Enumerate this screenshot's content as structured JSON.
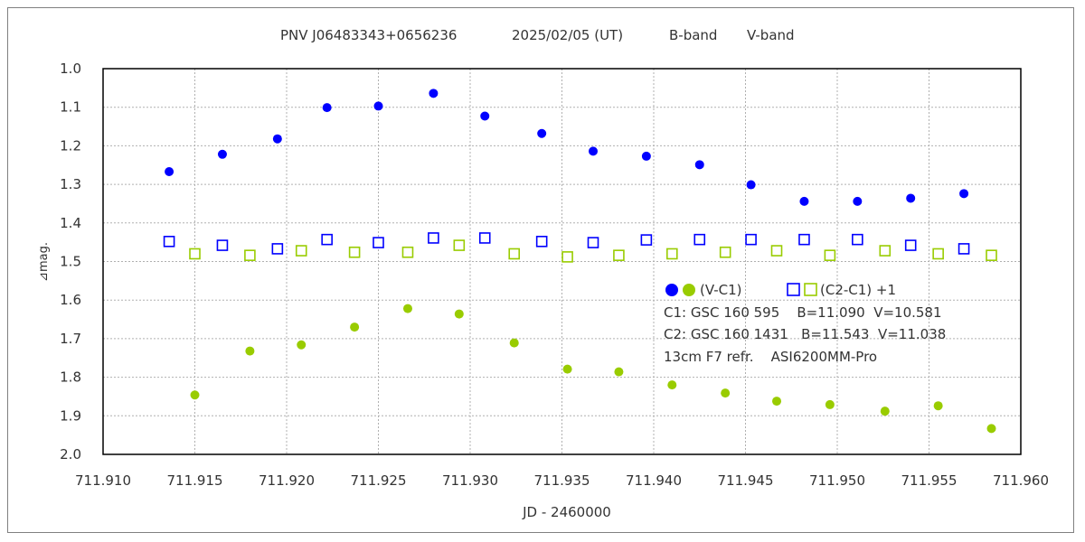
{
  "chart_data": {
    "type": "scatter",
    "title": "PNV J06483343+0656236",
    "date_text": "2025/02/05 (UT)",
    "band_labels": [
      {
        "text": "B-band",
        "color": "#0000FF"
      },
      {
        "text": "V-band",
        "color": "#99CC00"
      }
    ],
    "xlabel": "JD - 2460000",
    "ylabel": "⊿mag.",
    "xlim": [
      711.91,
      711.96
    ],
    "ylim": [
      1.0,
      2.0
    ],
    "y_inverted": true,
    "grid": true,
    "x_ticks": [
      "711.910",
      "711.915",
      "711.920",
      "711.925",
      "711.930",
      "711.935",
      "711.940",
      "711.945",
      "711.950",
      "711.955",
      "711.960"
    ],
    "y_ticks": [
      "1.0",
      "1.1",
      "1.2",
      "1.3",
      "1.4",
      "1.5",
      "1.6",
      "1.7",
      "1.8",
      "1.9",
      "2.0"
    ],
    "series": [
      {
        "name": "B (V-C1)",
        "marker": "filled-circle",
        "color": "#0000FF",
        "points": [
          [
            711.9136,
            1.267
          ],
          [
            711.9165,
            1.222
          ],
          [
            711.9195,
            1.182
          ],
          [
            711.9222,
            1.101
          ],
          [
            711.925,
            1.097
          ],
          [
            711.928,
            1.064
          ],
          [
            711.9308,
            1.123
          ],
          [
            711.9339,
            1.168
          ],
          [
            711.9367,
            1.214
          ],
          [
            711.9396,
            1.227
          ],
          [
            711.9425,
            1.249
          ],
          [
            711.9453,
            1.301
          ],
          [
            711.9482,
            1.344
          ],
          [
            711.9511,
            1.344
          ],
          [
            711.954,
            1.336
          ],
          [
            711.9569,
            1.324
          ]
        ]
      },
      {
        "name": "V (V-C1)",
        "marker": "filled-circle",
        "color": "#99CC00",
        "points": [
          [
            711.915,
            1.846
          ],
          [
            711.918,
            1.732
          ],
          [
            711.9208,
            1.716
          ],
          [
            711.9237,
            1.67
          ],
          [
            711.9266,
            1.622
          ],
          [
            711.9294,
            1.636
          ],
          [
            711.9324,
            1.711
          ],
          [
            711.9353,
            1.779
          ],
          [
            711.9381,
            1.786
          ],
          [
            711.941,
            1.82
          ],
          [
            711.9439,
            1.841
          ],
          [
            711.9467,
            1.862
          ],
          [
            711.9496,
            1.871
          ],
          [
            711.9526,
            1.888
          ],
          [
            711.9555,
            1.874
          ],
          [
            711.9584,
            1.933
          ]
        ]
      },
      {
        "name": "B (C2-C1)+1",
        "marker": "open-square",
        "color": "#0000FF",
        "points": [
          [
            711.9136,
            1.448
          ],
          [
            711.9165,
            1.458
          ],
          [
            711.9195,
            1.467
          ],
          [
            711.9222,
            1.443
          ],
          [
            711.925,
            1.451
          ],
          [
            711.928,
            1.439
          ],
          [
            711.9308,
            1.439
          ],
          [
            711.9339,
            1.448
          ],
          [
            711.9367,
            1.451
          ],
          [
            711.9396,
            1.444
          ],
          [
            711.9425,
            1.443
          ],
          [
            711.9453,
            1.443
          ],
          [
            711.9482,
            1.443
          ],
          [
            711.9511,
            1.443
          ],
          [
            711.954,
            1.458
          ],
          [
            711.9569,
            1.467
          ]
        ]
      },
      {
        "name": "V (C2-C1)+1",
        "marker": "open-square",
        "color": "#99CC00",
        "points": [
          [
            711.915,
            1.48
          ],
          [
            711.918,
            1.484
          ],
          [
            711.9208,
            1.472
          ],
          [
            711.9237,
            1.476
          ],
          [
            711.9266,
            1.476
          ],
          [
            711.9294,
            1.458
          ],
          [
            711.9324,
            1.48
          ],
          [
            711.9353,
            1.488
          ],
          [
            711.9381,
            1.484
          ],
          [
            711.941,
            1.48
          ],
          [
            711.9439,
            1.476
          ],
          [
            711.9467,
            1.472
          ],
          [
            711.9496,
            1.484
          ],
          [
            711.9526,
            1.472
          ],
          [
            711.9555,
            1.48
          ],
          [
            711.9584,
            1.484
          ]
        ]
      }
    ],
    "legend": {
      "placement": "right-inside",
      "row1_label": "(V-C1)",
      "row2_label": "(C2-C1) +1",
      "info_lines": [
        "C1: GSC 160 595    B=11.090  V=10.581",
        "C2: GSC 160 1431   B=11.543  V=11.038",
        "13cm F7 refr.    ASI6200MM-Pro"
      ]
    },
    "colors": {
      "blue": "#0000FF",
      "green": "#99CC00",
      "grid": "#B0B0B0",
      "axis": "#000000",
      "text": "#333333"
    }
  }
}
